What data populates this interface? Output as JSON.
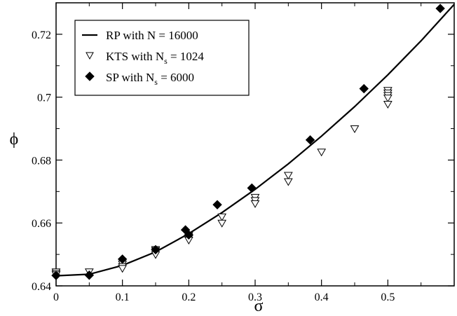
{
  "chart_data": {
    "type": "scatter",
    "xlabel": "σ",
    "ylabel": "ϕ",
    "xlim": [
      0,
      0.6
    ],
    "ylim": [
      0.64,
      0.73
    ],
    "x_ticks": [
      0,
      0.1,
      0.2,
      0.3,
      0.4,
      0.5
    ],
    "x_tick_labels": [
      "0",
      "0.1",
      "0.2",
      "0.3",
      "0.4",
      "0.5"
    ],
    "y_ticks": [
      0.64,
      0.66,
      0.68,
      0.7,
      0.72
    ],
    "y_tick_labels": [
      "0.64",
      "0.66",
      "0.68",
      "0.7",
      "0.72"
    ],
    "grid": false,
    "legend_position": "top-left",
    "series": [
      {
        "name": "RP with N = 16000",
        "legend_parts": {
          "main": "RP with N = 16000",
          "sub": "",
          "tail": ""
        },
        "kind": "line",
        "marker": "none",
        "x": [
          0,
          0.05,
          0.1,
          0.15,
          0.2,
          0.25,
          0.3,
          0.35,
          0.4,
          0.45,
          0.5,
          0.55,
          0.6
        ],
        "y": [
          0.6432,
          0.6437,
          0.6465,
          0.6508,
          0.6566,
          0.6633,
          0.6707,
          0.6788,
          0.6876,
          0.697,
          0.7071,
          0.7179,
          0.7295
        ]
      },
      {
        "name": "KTS with Ns = 1024",
        "legend_parts": {
          "main": "KTS with N",
          "sub": "s",
          "tail": " = 1024"
        },
        "kind": "scatter",
        "marker": "triangle-down-open",
        "x": [
          0,
          0,
          0,
          0.05,
          0.1,
          0.1,
          0.1,
          0.15,
          0.15,
          0.15,
          0.2,
          0.2,
          0.2,
          0.25,
          0.25,
          0.3,
          0.3,
          0.3,
          0.35,
          0.35,
          0.4,
          0.45,
          0.5,
          0.5,
          0.5,
          0.5,
          0.5
        ],
        "y": [
          0.6445,
          0.644,
          0.6436,
          0.6445,
          0.647,
          0.6462,
          0.6456,
          0.6516,
          0.6512,
          0.65,
          0.656,
          0.6552,
          0.6546,
          0.662,
          0.66,
          0.6682,
          0.6672,
          0.6662,
          0.6752,
          0.6732,
          0.6826,
          0.69,
          0.7022,
          0.7014,
          0.7006,
          0.6998,
          0.6978
        ]
      },
      {
        "name": "SP with Ns = 6000",
        "legend_parts": {
          "main": "SP with N",
          "sub": "s",
          "tail": " = 6000"
        },
        "kind": "scatter",
        "marker": "diamond-filled",
        "x": [
          0,
          0.05,
          0.1,
          0.15,
          0.195,
          0.2,
          0.243,
          0.295,
          0.383,
          0.464,
          0.579
        ],
        "y": [
          0.6433,
          0.6434,
          0.6485,
          0.6515,
          0.6578,
          0.6562,
          0.6658,
          0.6711,
          0.6864,
          0.7027,
          0.7282
        ]
      }
    ]
  }
}
